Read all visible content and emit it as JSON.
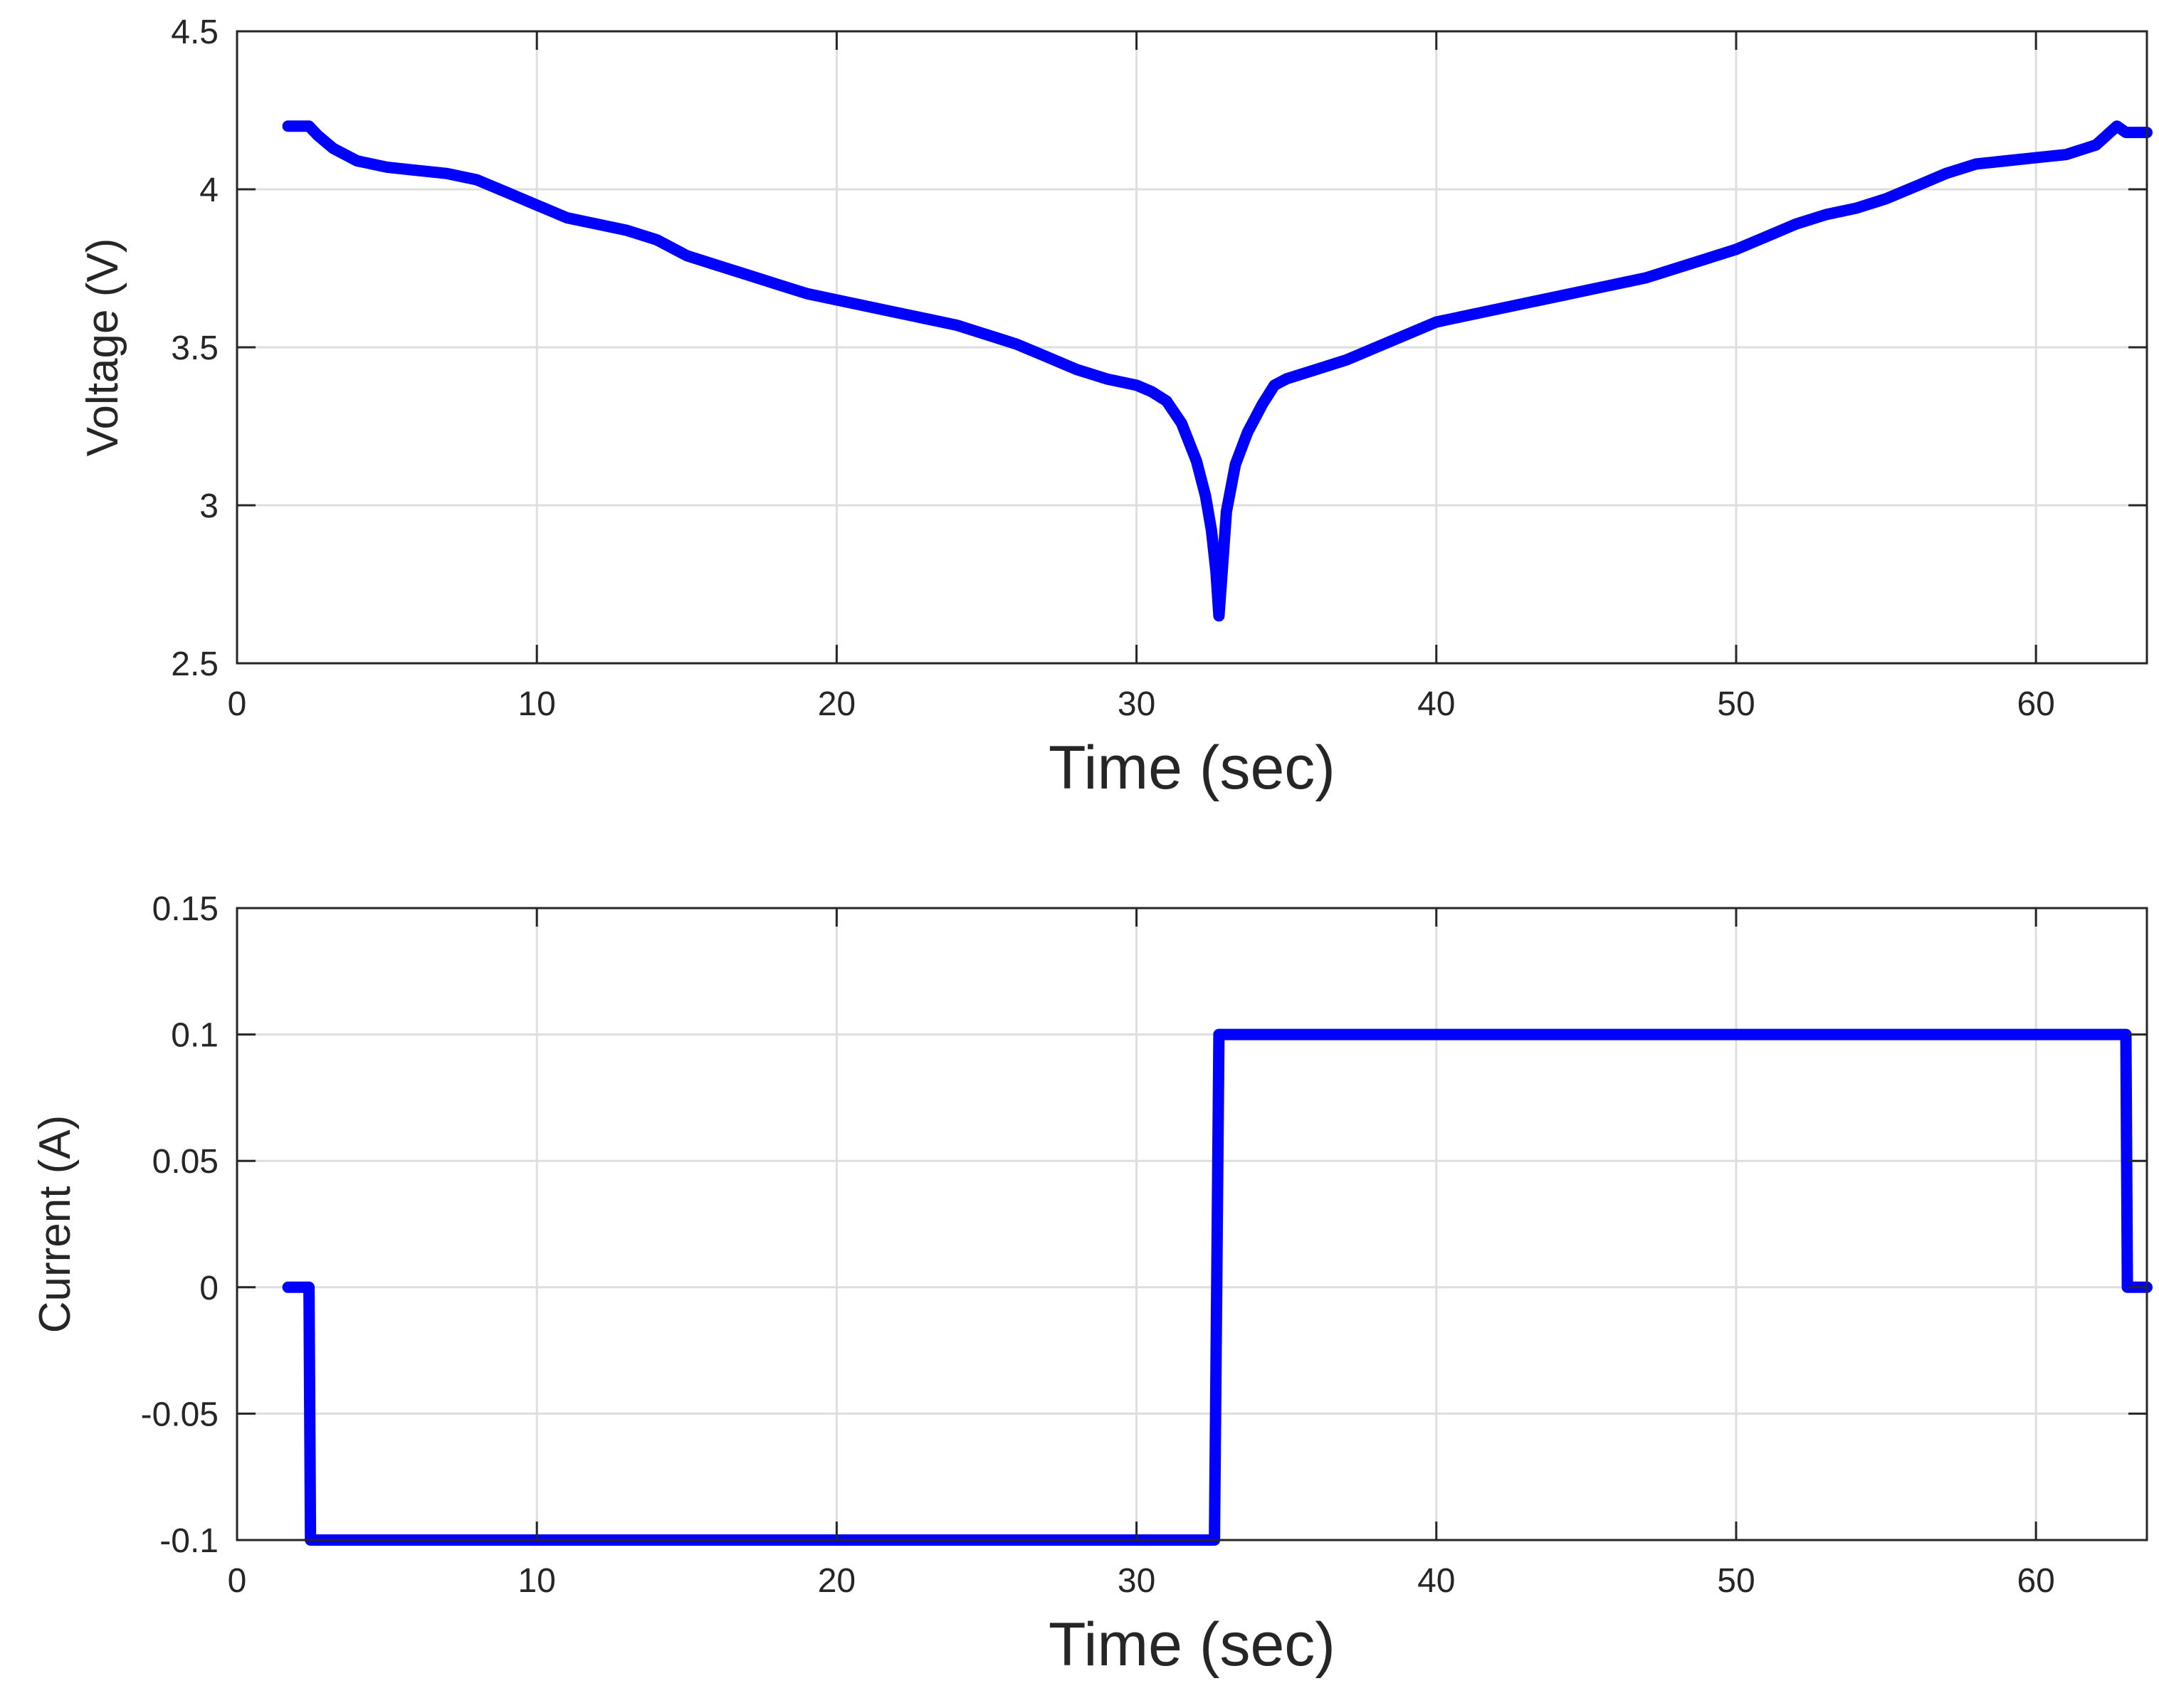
{
  "chart_data": [
    {
      "type": "line",
      "xlabel": "Time (sec)",
      "ylabel": "Voltage (V)",
      "xlim": [
        0,
        63.7
      ],
      "ylim": [
        2.5,
        4.5
      ],
      "xticks": [
        0,
        10,
        20,
        30,
        40,
        50,
        60
      ],
      "xtick_labels": [
        "0",
        "10",
        "20",
        "30",
        "40",
        "50",
        "60"
      ],
      "yticks": [
        2.5,
        3,
        3.5,
        4,
        4.5
      ],
      "ytick_labels": [
        "2.5",
        "3",
        "3.5",
        "4",
        "4.5"
      ],
      "grid": true,
      "series": [
        {
          "color": "#0000ff",
          "x": [
            1.7,
            2.4,
            2.7,
            3.2,
            4.0,
            5.0,
            6.0,
            7.0,
            8.0,
            9.0,
            10.0,
            11.0,
            12.0,
            13.0,
            14.0,
            15.0,
            16.0,
            17.0,
            18.0,
            19.0,
            20.0,
            21.0,
            22.0,
            23.0,
            24.0,
            25.0,
            26.0,
            27.0,
            28.0,
            29.0,
            30.0,
            30.5,
            31.0,
            31.5,
            32.0,
            32.3,
            32.5,
            32.65,
            32.75,
            32.85,
            33.0,
            33.3,
            33.7,
            34.2,
            34.6,
            35.0,
            36.0,
            37.0,
            38.0,
            39.0,
            40.0,
            41.0,
            42.0,
            43.0,
            44.0,
            45.0,
            46.0,
            47.0,
            48.0,
            49.0,
            50.0,
            51.0,
            52.0,
            53.0,
            54.0,
            55.0,
            56.0,
            57.0,
            58.0,
            59.0,
            60.0,
            61.0,
            62.0,
            62.7,
            63.0,
            63.3,
            63.7
          ],
          "y": [
            4.2,
            4.2,
            4.17,
            4.13,
            4.09,
            4.07,
            4.06,
            4.05,
            4.03,
            3.99,
            3.95,
            3.91,
            3.89,
            3.87,
            3.84,
            3.79,
            3.76,
            3.73,
            3.7,
            3.67,
            3.65,
            3.63,
            3.61,
            3.59,
            3.57,
            3.54,
            3.51,
            3.47,
            3.43,
            3.4,
            3.38,
            3.36,
            3.33,
            3.26,
            3.14,
            3.03,
            2.92,
            2.79,
            2.65,
            2.78,
            2.98,
            3.13,
            3.23,
            3.32,
            3.38,
            3.4,
            3.43,
            3.46,
            3.5,
            3.54,
            3.58,
            3.6,
            3.62,
            3.64,
            3.66,
            3.68,
            3.7,
            3.72,
            3.75,
            3.78,
            3.81,
            3.85,
            3.89,
            3.92,
            3.94,
            3.97,
            4.01,
            4.05,
            4.08,
            4.09,
            4.1,
            4.11,
            4.14,
            4.2,
            4.18,
            4.18,
            4.18
          ]
        }
      ]
    },
    {
      "type": "line",
      "xlabel": "Time (sec)",
      "ylabel": "Current (A)",
      "xlim": [
        0,
        63.7
      ],
      "ylim": [
        -0.1,
        0.15
      ],
      "xticks": [
        0,
        10,
        20,
        30,
        40,
        50,
        60
      ],
      "xtick_labels": [
        "0",
        "10",
        "20",
        "30",
        "40",
        "50",
        "60"
      ],
      "yticks": [
        -0.1,
        -0.05,
        0,
        0.05,
        0.1,
        0.15
      ],
      "ytick_labels": [
        "-0.1",
        "-0.05",
        "0",
        "0.05",
        "0.1",
        "0.15"
      ],
      "grid": true,
      "series": [
        {
          "color": "#0000ff",
          "x": [
            1.7,
            2.4,
            2.45,
            32.6,
            32.75,
            63.0,
            63.05,
            63.7
          ],
          "y": [
            0,
            0,
            -0.1,
            -0.1,
            0.1,
            0.1,
            0,
            0
          ]
        }
      ]
    }
  ]
}
